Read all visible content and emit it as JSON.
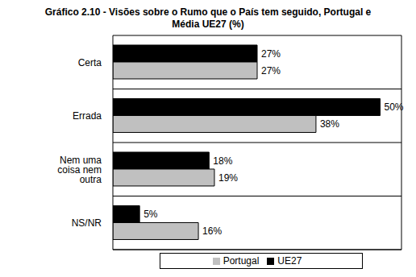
{
  "chart_data": {
    "type": "bar",
    "title": "Gráfico 2.10 - Visões sobre o Rumo que o País tem seguido, Portugal e Média UE27 (%)",
    "orientation": "horizontal",
    "categories": [
      "Certa",
      "Errada",
      "Nem uma coisa nem outra",
      "NS/NR"
    ],
    "series": [
      {
        "name": "UE27",
        "color": "#000000",
        "values": [
          27,
          50,
          18,
          5
        ],
        "value_labels": [
          "27%",
          "50%",
          "18%",
          "5%"
        ]
      },
      {
        "name": "Portugal",
        "color": "#c0c0c0",
        "values": [
          27,
          38,
          19,
          16
        ],
        "value_labels": [
          "27%",
          "38%",
          "19%",
          "16%"
        ]
      }
    ],
    "xlim": [
      0,
      54
    ],
    "tick_labels": "y",
    "data_labels": true,
    "grid": true,
    "legend": "bottom"
  }
}
